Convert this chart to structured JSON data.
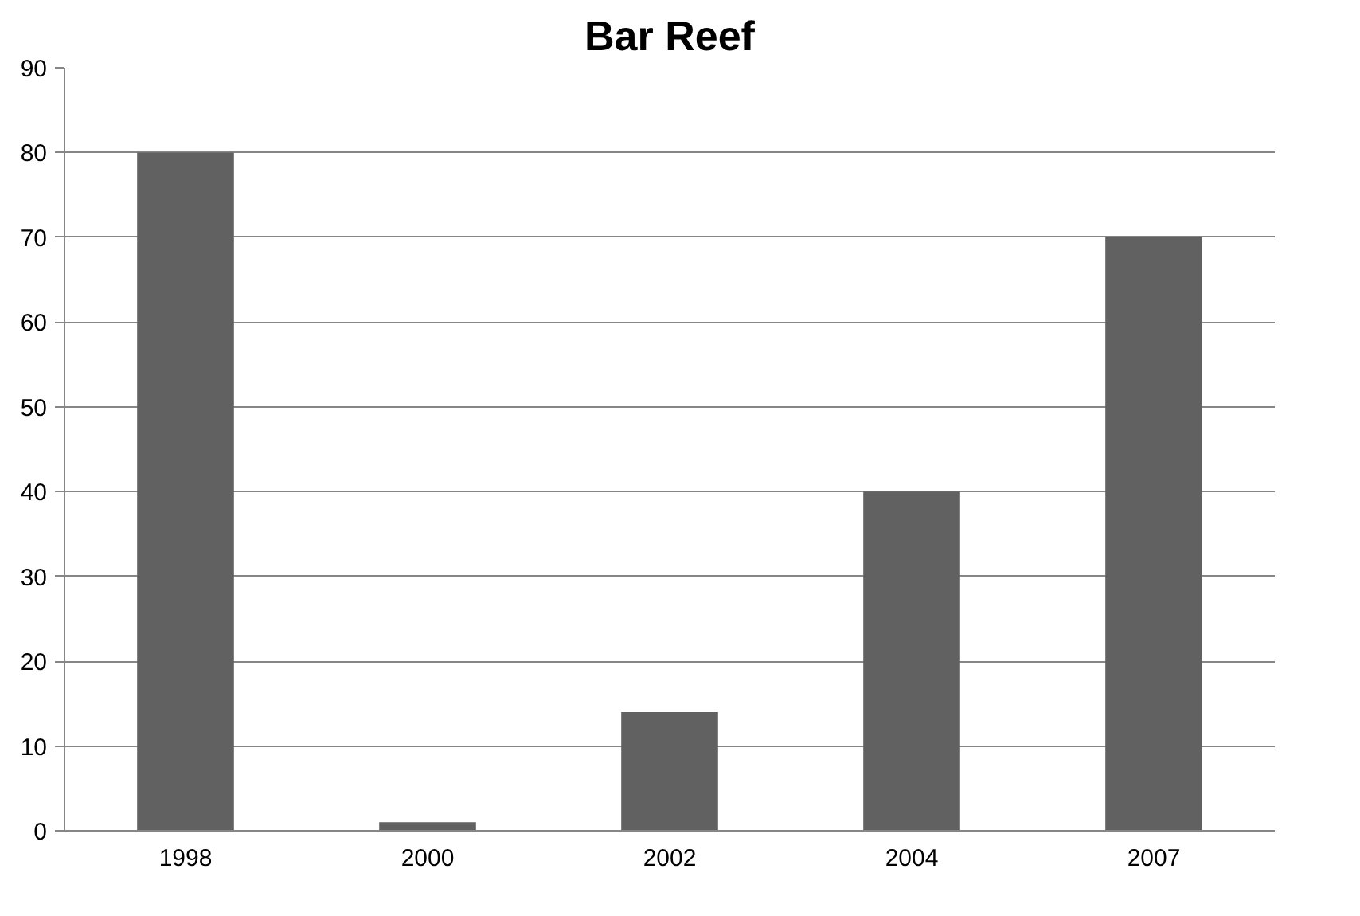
{
  "chart_data": {
    "type": "bar",
    "title": "Bar Reef",
    "categories": [
      "1998",
      "2000",
      "2002",
      "2004",
      "2007"
    ],
    "values": [
      80,
      1,
      14,
      40,
      70
    ],
    "color": "#616161",
    "ylim": [
      0,
      90
    ],
    "yticks": [
      0,
      10,
      20,
      30,
      40,
      50,
      60,
      70,
      80,
      90
    ],
    "grid": "y"
  }
}
